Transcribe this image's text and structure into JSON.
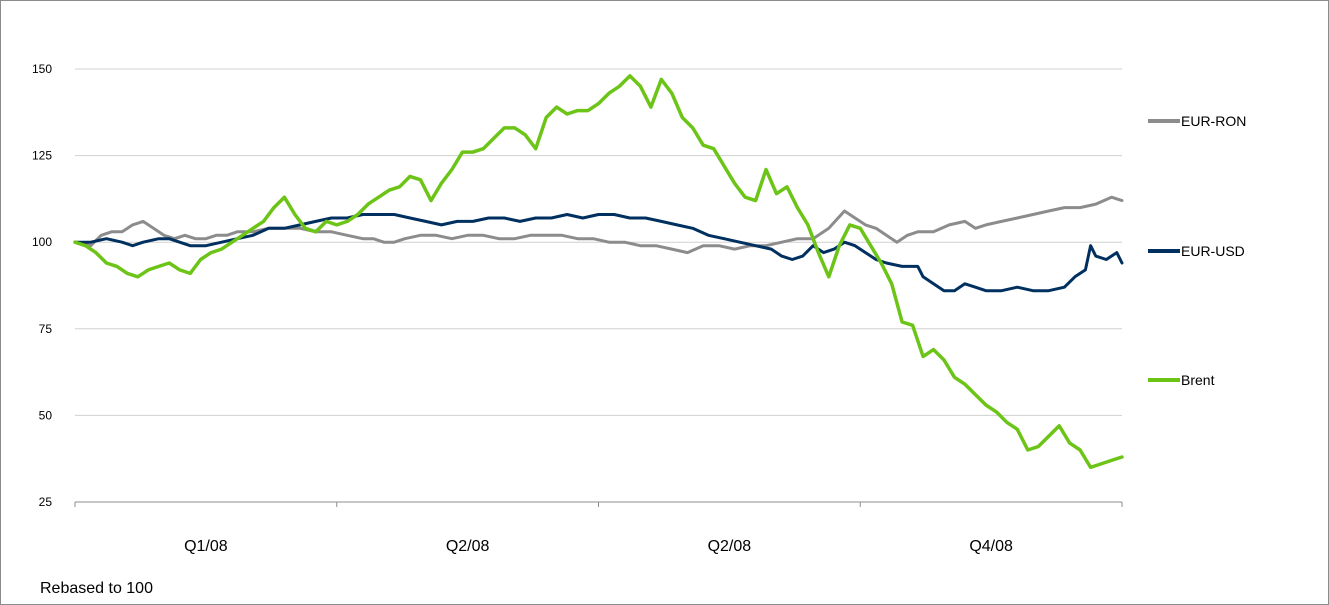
{
  "chart_data": {
    "type": "line",
    "title": "",
    "xlabel": "",
    "ylabel": "",
    "note": "Rebased to 100",
    "ylim": [
      25,
      155
    ],
    "yticks": [
      25,
      50,
      75,
      100,
      125,
      150
    ],
    "grid": true,
    "legend_position": "right",
    "x_categories": [
      "Q1/08",
      "Q2/08",
      "Q2/08",
      "Q4/08"
    ],
    "xlim": [
      0,
      100
    ],
    "series": [
      {
        "name": "EUR-RON",
        "color": "#8c8c8c",
        "points": [
          [
            0,
            100
          ],
          [
            1.5,
            99
          ],
          [
            2.5,
            102
          ],
          [
            3.5,
            103
          ],
          [
            4.5,
            103
          ],
          [
            5.5,
            105
          ],
          [
            6.5,
            106
          ],
          [
            7.5,
            104
          ],
          [
            8.5,
            102
          ],
          [
            9.5,
            101
          ],
          [
            10.5,
            102
          ],
          [
            11.5,
            101
          ],
          [
            12.5,
            101
          ],
          [
            13.5,
            102
          ],
          [
            14.5,
            102
          ],
          [
            15.5,
            103
          ],
          [
            17,
            103
          ],
          [
            18.5,
            104
          ],
          [
            20,
            104
          ],
          [
            21.5,
            104
          ],
          [
            23,
            103
          ],
          [
            24.5,
            103
          ],
          [
            26,
            102
          ],
          [
            27.5,
            101
          ],
          [
            28.5,
            101
          ],
          [
            29.5,
            100
          ],
          [
            30.5,
            100
          ],
          [
            31.5,
            101
          ],
          [
            33,
            102
          ],
          [
            34.5,
            102
          ],
          [
            36,
            101
          ],
          [
            37.5,
            102
          ],
          [
            39,
            102
          ],
          [
            40.5,
            101
          ],
          [
            42,
            101
          ],
          [
            43.5,
            102
          ],
          [
            45,
            102
          ],
          [
            46.5,
            102
          ],
          [
            48,
            101
          ],
          [
            49.5,
            101
          ],
          [
            51,
            100
          ],
          [
            52.5,
            100
          ],
          [
            54,
            99
          ],
          [
            55.5,
            99
          ],
          [
            57,
            98
          ],
          [
            58.5,
            97
          ],
          [
            60,
            99
          ],
          [
            61.5,
            99
          ],
          [
            63,
            98
          ],
          [
            64.5,
            99
          ],
          [
            66,
            99
          ],
          [
            67.5,
            100
          ],
          [
            69,
            101
          ],
          [
            70.5,
            101
          ],
          [
            72,
            104
          ],
          [
            73.5,
            109
          ],
          [
            74.5,
            107
          ],
          [
            75.5,
            105
          ],
          [
            76.5,
            104
          ],
          [
            77.5,
            102
          ],
          [
            78.5,
            100
          ],
          [
            79.5,
            102
          ],
          [
            80.5,
            103
          ],
          [
            82,
            103
          ],
          [
            83.5,
            105
          ],
          [
            85,
            106
          ],
          [
            86,
            104
          ],
          [
            87,
            105
          ],
          [
            88.5,
            106
          ],
          [
            90,
            107
          ],
          [
            91.5,
            108
          ],
          [
            93,
            109
          ],
          [
            94.5,
            110
          ],
          [
            96,
            110
          ],
          [
            97.5,
            111
          ],
          [
            99,
            113
          ],
          [
            100,
            112
          ]
        ]
      },
      {
        "name": "EUR-USD",
        "color": "#00305f",
        "points": [
          [
            0,
            100
          ],
          [
            1.5,
            100
          ],
          [
            3,
            101
          ],
          [
            4.5,
            100
          ],
          [
            5.5,
            99
          ],
          [
            6.5,
            100
          ],
          [
            8,
            101
          ],
          [
            9,
            101
          ],
          [
            10,
            100
          ],
          [
            11,
            99
          ],
          [
            12.5,
            99
          ],
          [
            14,
            100
          ],
          [
            15.5,
            101
          ],
          [
            17,
            102
          ],
          [
            18.5,
            104
          ],
          [
            20,
            104
          ],
          [
            21.5,
            105
          ],
          [
            23,
            106
          ],
          [
            24.5,
            107
          ],
          [
            26,
            107
          ],
          [
            27.5,
            108
          ],
          [
            29,
            108
          ],
          [
            30.5,
            108
          ],
          [
            32,
            107
          ],
          [
            33.5,
            106
          ],
          [
            35,
            105
          ],
          [
            36.5,
            106
          ],
          [
            38,
            106
          ],
          [
            39.5,
            107
          ],
          [
            41,
            107
          ],
          [
            42.5,
            106
          ],
          [
            44,
            107
          ],
          [
            45.5,
            107
          ],
          [
            47,
            108
          ],
          [
            48.5,
            107
          ],
          [
            50,
            108
          ],
          [
            51.5,
            108
          ],
          [
            53,
            107
          ],
          [
            54.5,
            107
          ],
          [
            56,
            106
          ],
          [
            57.5,
            105
          ],
          [
            59,
            104
          ],
          [
            60.5,
            102
          ],
          [
            62,
            101
          ],
          [
            63.5,
            100
          ],
          [
            65,
            99
          ],
          [
            66.5,
            98
          ],
          [
            67.5,
            96
          ],
          [
            68.5,
            95
          ],
          [
            69.5,
            96
          ],
          [
            70.5,
            99
          ],
          [
            71.5,
            97
          ],
          [
            72.5,
            98
          ],
          [
            73.5,
            100
          ],
          [
            74.5,
            99
          ],
          [
            75.5,
            97
          ],
          [
            76.5,
            95
          ],
          [
            77.5,
            94
          ],
          [
            79,
            93
          ],
          [
            80.5,
            93
          ],
          [
            81,
            90
          ],
          [
            82,
            88
          ],
          [
            83,
            86
          ],
          [
            84,
            86
          ],
          [
            85,
            88
          ],
          [
            86,
            87
          ],
          [
            87,
            86
          ],
          [
            88.5,
            86
          ],
          [
            90,
            87
          ],
          [
            91.5,
            86
          ],
          [
            93,
            86
          ],
          [
            94.5,
            87
          ],
          [
            95.5,
            90
          ],
          [
            96.5,
            92
          ],
          [
            97,
            99
          ],
          [
            97.5,
            96
          ],
          [
            98.5,
            95
          ],
          [
            99.5,
            97
          ],
          [
            100,
            94
          ]
        ]
      },
      {
        "name": "Brent",
        "color": "#6cc417",
        "points": [
          [
            0,
            100
          ],
          [
            1,
            99
          ],
          [
            2,
            97
          ],
          [
            3,
            94
          ],
          [
            4,
            93
          ],
          [
            5,
            91
          ],
          [
            6,
            90
          ],
          [
            7,
            92
          ],
          [
            8,
            93
          ],
          [
            9,
            94
          ],
          [
            10,
            92
          ],
          [
            11,
            91
          ],
          [
            12,
            95
          ],
          [
            13,
            97
          ],
          [
            14,
            98
          ],
          [
            15,
            100
          ],
          [
            16,
            102
          ],
          [
            17,
            104
          ],
          [
            18,
            106
          ],
          [
            19,
            110
          ],
          [
            20,
            113
          ],
          [
            21,
            108
          ],
          [
            22,
            104
          ],
          [
            23,
            103
          ],
          [
            24,
            106
          ],
          [
            25,
            105
          ],
          [
            26,
            106
          ],
          [
            27,
            108
          ],
          [
            28,
            111
          ],
          [
            29,
            113
          ],
          [
            30,
            115
          ],
          [
            31,
            116
          ],
          [
            32,
            119
          ],
          [
            33,
            118
          ],
          [
            34,
            112
          ],
          [
            35,
            117
          ],
          [
            36,
            121
          ],
          [
            37,
            126
          ],
          [
            38,
            126
          ],
          [
            39,
            127
          ],
          [
            40,
            130
          ],
          [
            41,
            133
          ],
          [
            42,
            133
          ],
          [
            43,
            131
          ],
          [
            44,
            127
          ],
          [
            45,
            136
          ],
          [
            46,
            139
          ],
          [
            47,
            137
          ],
          [
            48,
            138
          ],
          [
            49,
            138
          ],
          [
            50,
            140
          ],
          [
            51,
            143
          ],
          [
            52,
            145
          ],
          [
            53,
            148
          ],
          [
            54,
            145
          ],
          [
            55,
            139
          ],
          [
            56,
            147
          ],
          [
            57,
            143
          ],
          [
            58,
            136
          ],
          [
            59,
            133
          ],
          [
            60,
            128
          ],
          [
            61,
            127
          ],
          [
            62,
            122
          ],
          [
            63,
            117
          ],
          [
            64,
            113
          ],
          [
            65,
            112
          ],
          [
            66,
            121
          ],
          [
            67,
            114
          ],
          [
            68,
            116
          ],
          [
            69,
            110
          ],
          [
            70,
            105
          ],
          [
            71,
            97
          ],
          [
            72,
            90
          ],
          [
            73,
            99
          ],
          [
            74,
            105
          ],
          [
            75,
            104
          ],
          [
            76,
            99
          ],
          [
            77,
            94
          ],
          [
            78,
            88
          ],
          [
            79,
            77
          ],
          [
            80,
            76
          ],
          [
            81,
            67
          ],
          [
            82,
            69
          ],
          [
            83,
            66
          ],
          [
            84,
            61
          ],
          [
            85,
            59
          ],
          [
            86,
            56
          ],
          [
            87,
            53
          ],
          [
            88,
            51
          ],
          [
            89,
            48
          ],
          [
            90,
            46
          ],
          [
            91,
            40
          ],
          [
            92,
            41
          ],
          [
            93,
            44
          ],
          [
            94,
            47
          ],
          [
            95,
            42
          ],
          [
            96,
            40
          ],
          [
            97,
            35
          ],
          [
            98,
            36
          ],
          [
            99,
            37
          ],
          [
            100,
            38
          ]
        ]
      }
    ]
  }
}
